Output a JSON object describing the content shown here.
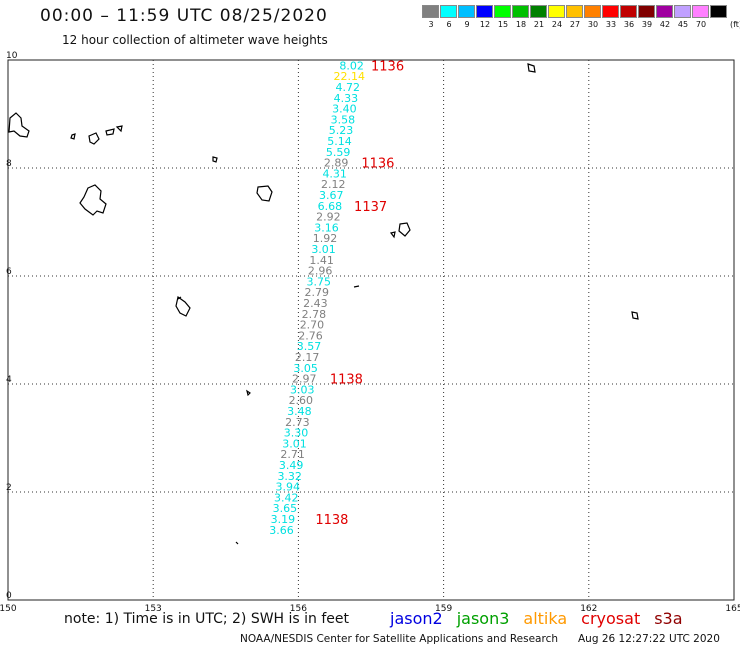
{
  "header": {
    "title": "00:00 – 11:59 UTC 08/25/2020",
    "subtitle": "12 hour collection of altimeter wave heights"
  },
  "color_scale": {
    "unit": "(ft)",
    "bins": [
      {
        "label": "3",
        "color": "#808080"
      },
      {
        "label": "6",
        "color": "#00ffff"
      },
      {
        "label": "9",
        "color": "#00bfff"
      },
      {
        "label": "12",
        "color": "#0000ff"
      },
      {
        "label": "15",
        "color": "#00ff00"
      },
      {
        "label": "18",
        "color": "#00c000"
      },
      {
        "label": "21",
        "color": "#008000"
      },
      {
        "label": "24",
        "color": "#ffff00"
      },
      {
        "label": "27",
        "color": "#ffc000"
      },
      {
        "label": "30",
        "color": "#ff8000"
      },
      {
        "label": "33",
        "color": "#ff0000"
      },
      {
        "label": "36",
        "color": "#c00000"
      },
      {
        "label": "39",
        "color": "#800000"
      },
      {
        "label": "42",
        "color": "#a000a0"
      },
      {
        "label": "45",
        "color": "#c0a0ff"
      },
      {
        "label": "70",
        "color": "#ff80ff"
      },
      {
        "label": "",
        "color": "#000000"
      }
    ]
  },
  "map_extent": {
    "lon_min": 150,
    "lon_max": 165,
    "lat_min": 0,
    "lat_max": 10
  },
  "lon_ticks": [
    "150",
    "153",
    "156",
    "159",
    "162",
    "165"
  ],
  "lat_ticks": [
    "0",
    "2",
    "4",
    "6",
    "8",
    "10"
  ],
  "colors": {
    "gray": "#808080",
    "cyan": "#00e0e0",
    "yellow": "#ffe000",
    "red": "#e00000"
  },
  "observations": [
    {
      "lon": 157.1,
      "lat": 9.9,
      "value": "8.02",
      "color": "cyan"
    },
    {
      "lon": 157.05,
      "lat": 9.7,
      "value": "22.14",
      "color": "yellow"
    },
    {
      "lon": 157.02,
      "lat": 9.5,
      "value": "4.72",
      "color": "cyan"
    },
    {
      "lon": 156.98,
      "lat": 9.3,
      "value": "4.33",
      "color": "cyan"
    },
    {
      "lon": 156.95,
      "lat": 9.1,
      "value": "3.40",
      "color": "cyan"
    },
    {
      "lon": 156.92,
      "lat": 8.9,
      "value": "3.58",
      "color": "cyan"
    },
    {
      "lon": 156.88,
      "lat": 8.7,
      "value": "5.23",
      "color": "cyan"
    },
    {
      "lon": 156.85,
      "lat": 8.5,
      "value": "5.14",
      "color": "cyan"
    },
    {
      "lon": 156.82,
      "lat": 8.3,
      "value": "5.59",
      "color": "cyan"
    },
    {
      "lon": 156.78,
      "lat": 8.1,
      "value": "2.89",
      "color": "gray"
    },
    {
      "lon": 156.75,
      "lat": 7.9,
      "value": "4.31",
      "color": "cyan"
    },
    {
      "lon": 156.72,
      "lat": 7.7,
      "value": "2.12",
      "color": "gray"
    },
    {
      "lon": 156.68,
      "lat": 7.5,
      "value": "3.67",
      "color": "cyan"
    },
    {
      "lon": 156.65,
      "lat": 7.3,
      "value": "6.68",
      "color": "cyan"
    },
    {
      "lon": 156.62,
      "lat": 7.1,
      "value": "2.92",
      "color": "gray"
    },
    {
      "lon": 156.58,
      "lat": 6.9,
      "value": "3.16",
      "color": "cyan"
    },
    {
      "lon": 156.55,
      "lat": 6.7,
      "value": "1.92",
      "color": "gray"
    },
    {
      "lon": 156.52,
      "lat": 6.5,
      "value": "3.01",
      "color": "cyan"
    },
    {
      "lon": 156.48,
      "lat": 6.3,
      "value": "1.41",
      "color": "gray"
    },
    {
      "lon": 156.45,
      "lat": 6.1,
      "value": "2.96",
      "color": "gray"
    },
    {
      "lon": 156.42,
      "lat": 5.9,
      "value": "3.75",
      "color": "cyan"
    },
    {
      "lon": 156.38,
      "lat": 5.7,
      "value": "2.79",
      "color": "gray"
    },
    {
      "lon": 156.35,
      "lat": 5.5,
      "value": "2.43",
      "color": "gray"
    },
    {
      "lon": 156.32,
      "lat": 5.3,
      "value": "2.78",
      "color": "gray"
    },
    {
      "lon": 156.28,
      "lat": 5.1,
      "value": "2.70",
      "color": "gray"
    },
    {
      "lon": 156.25,
      "lat": 4.9,
      "value": "2.76",
      "color": "gray"
    },
    {
      "lon": 156.22,
      "lat": 4.7,
      "value": "3.57",
      "color": "cyan"
    },
    {
      "lon": 156.18,
      "lat": 4.5,
      "value": "2.17",
      "color": "gray"
    },
    {
      "lon": 156.15,
      "lat": 4.3,
      "value": "3.05",
      "color": "cyan"
    },
    {
      "lon": 156.12,
      "lat": 4.1,
      "value": "2.97",
      "color": "gray"
    },
    {
      "lon": 156.08,
      "lat": 3.9,
      "value": "3.03",
      "color": "cyan"
    },
    {
      "lon": 156.05,
      "lat": 3.7,
      "value": "2.60",
      "color": "gray"
    },
    {
      "lon": 156.02,
      "lat": 3.5,
      "value": "3.48",
      "color": "cyan"
    },
    {
      "lon": 155.98,
      "lat": 3.3,
      "value": "2.73",
      "color": "gray"
    },
    {
      "lon": 155.95,
      "lat": 3.1,
      "value": "3.30",
      "color": "cyan"
    },
    {
      "lon": 155.92,
      "lat": 2.9,
      "value": "3.01",
      "color": "cyan"
    },
    {
      "lon": 155.88,
      "lat": 2.7,
      "value": "2.71",
      "color": "gray"
    },
    {
      "lon": 155.85,
      "lat": 2.5,
      "value": "3.49",
      "color": "cyan"
    },
    {
      "lon": 155.82,
      "lat": 2.3,
      "value": "3.32",
      "color": "cyan"
    },
    {
      "lon": 155.78,
      "lat": 2.1,
      "value": "3.94",
      "color": "cyan"
    },
    {
      "lon": 155.75,
      "lat": 1.9,
      "value": "3.42",
      "color": "cyan"
    },
    {
      "lon": 155.72,
      "lat": 1.7,
      "value": "3.65",
      "color": "cyan"
    },
    {
      "lon": 155.68,
      "lat": 1.5,
      "value": "3.19",
      "color": "cyan"
    },
    {
      "lon": 155.65,
      "lat": 1.3,
      "value": "3.66",
      "color": "cyan"
    }
  ],
  "pass_labels": [
    {
      "lon": 157.5,
      "lat": 9.9,
      "text": "1136"
    },
    {
      "lon": 157.3,
      "lat": 8.1,
      "text": "1136"
    },
    {
      "lon": 157.15,
      "lat": 7.3,
      "text": "1137"
    },
    {
      "lon": 156.65,
      "lat": 4.1,
      "text": "1138"
    },
    {
      "lon": 156.35,
      "lat": 1.5,
      "text": "1138"
    }
  ],
  "footer": {
    "note": "note:  1) Time is in UTC;  2) SWH is in feet",
    "satellites": [
      {
        "name": "jason2",
        "color": "#0000e0"
      },
      {
        "name": "jason3",
        "color": "#00a000"
      },
      {
        "name": "altika",
        "color": "#ff9900"
      },
      {
        "name": "cryosat",
        "color": "#e00000"
      },
      {
        "name": "s3a",
        "color": "#900000"
      }
    ],
    "credit": "NOAA/NESDIS Center for Satellite Applications and Research",
    "generated": "Aug 26 12:27:22 UTC 2020"
  }
}
